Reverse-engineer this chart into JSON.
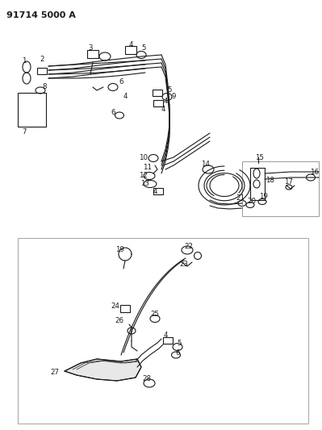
{
  "title": "91714 5000 A",
  "background_color": "#ffffff",
  "line_color": "#1a1a1a",
  "fig_width": 3.99,
  "fig_height": 5.33,
  "dpi": 100
}
